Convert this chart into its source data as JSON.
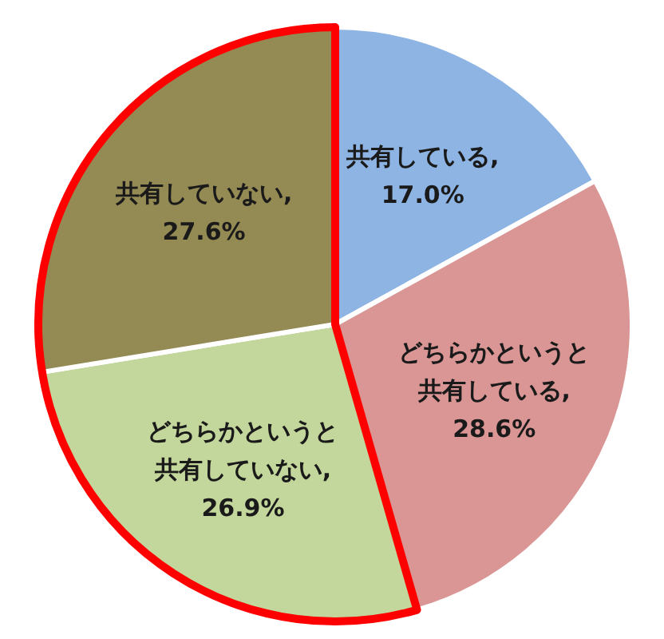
{
  "chart_data": {
    "type": "pie",
    "categories": [
      "共有している",
      "どちらかというと共有している",
      "どちらかというと共有していない",
      "共有していない"
    ],
    "values": [
      17.0,
      28.6,
      26.9,
      27.6
    ],
    "value_labels": [
      ",\n17.0%",
      ",\n28.6%",
      ",\n26.9%",
      ",\n27.6%"
    ],
    "colors": [
      "#8eb4e3",
      "#d99694",
      "#c3d69b",
      "#948a54"
    ]
  }
}
